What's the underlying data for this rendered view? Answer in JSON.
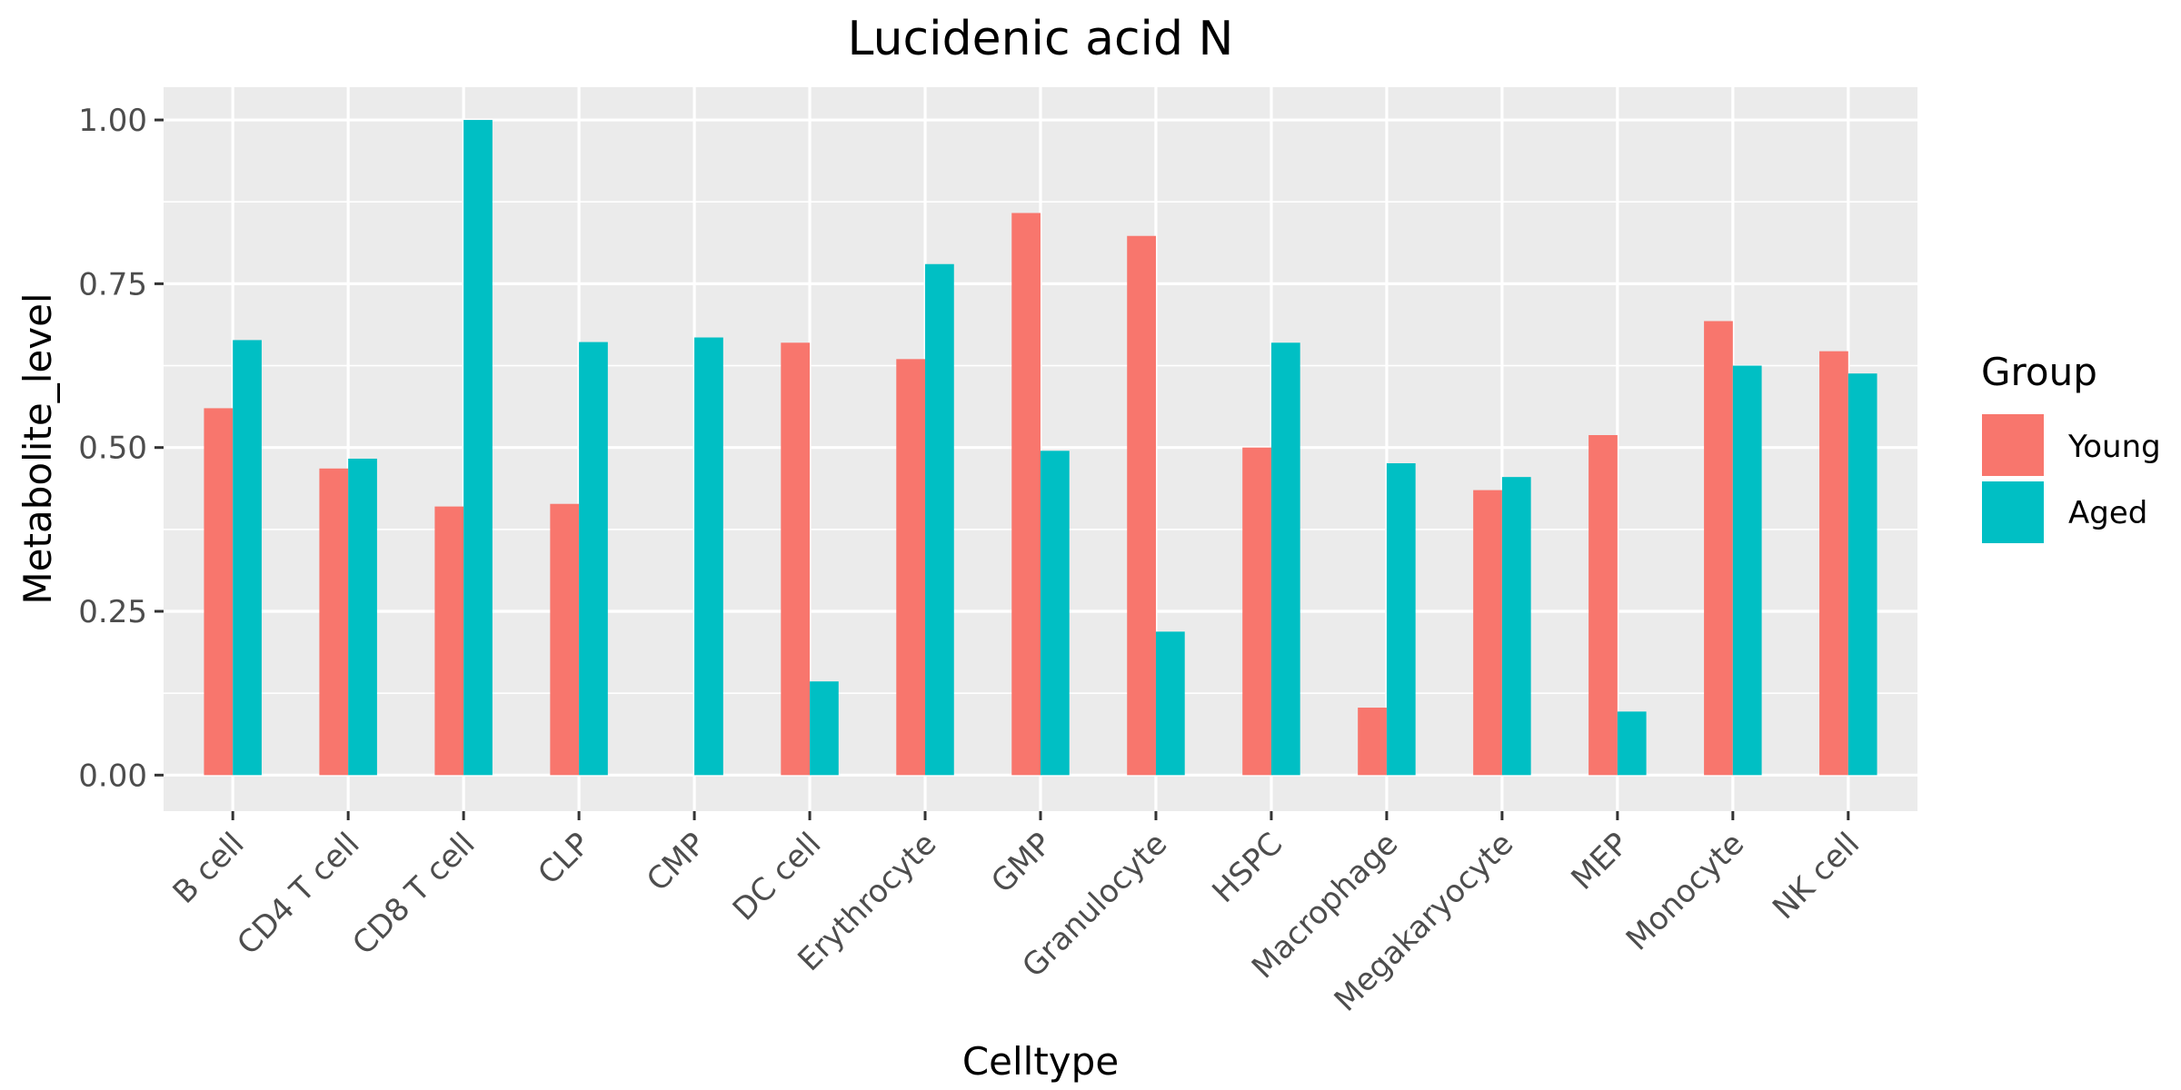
{
  "chart_data": {
    "type": "bar",
    "title": "Lucidenic acid N",
    "xlabel": "Celltype",
    "ylabel": "Metabolite_level",
    "ylim": [
      -0.055,
      1.05
    ],
    "yticks": [
      0.0,
      0.25,
      0.5,
      0.75,
      1.0
    ],
    "ytick_labels": [
      "0.00",
      "0.25",
      "0.50",
      "0.75",
      "1.00"
    ],
    "grid": true,
    "legend_position": "right",
    "legend_title": "Group",
    "categories": [
      "B cell",
      "CD4 T cell",
      "CD8 T cell",
      "CLP",
      "CMP",
      "DC cell",
      "Erythrocyte",
      "GMP",
      "Granulocyte",
      "HSPC",
      "Macrophage",
      "Megakaryocyte",
      "MEP",
      "Monocyte",
      "NK cell"
    ],
    "series": [
      {
        "name": "Young",
        "color": "#F8766D",
        "values": [
          0.56,
          0.468,
          0.41,
          0.414,
          null,
          0.66,
          0.635,
          0.858,
          0.823,
          0.5,
          0.103,
          0.435,
          0.519,
          0.693,
          0.647
        ]
      },
      {
        "name": "Aged",
        "color": "#00BFC4",
        "values": [
          0.664,
          0.483,
          1.0,
          0.661,
          0.668,
          0.143,
          0.78,
          0.495,
          0.219,
          0.66,
          0.476,
          0.455,
          0.097,
          0.625,
          0.613
        ]
      }
    ],
    "colors": {
      "panel_background": "#EBEBEB",
      "gridline": "#FFFFFF",
      "tick_text": "#4D4D4D",
      "tick_mark": "#333333"
    }
  }
}
